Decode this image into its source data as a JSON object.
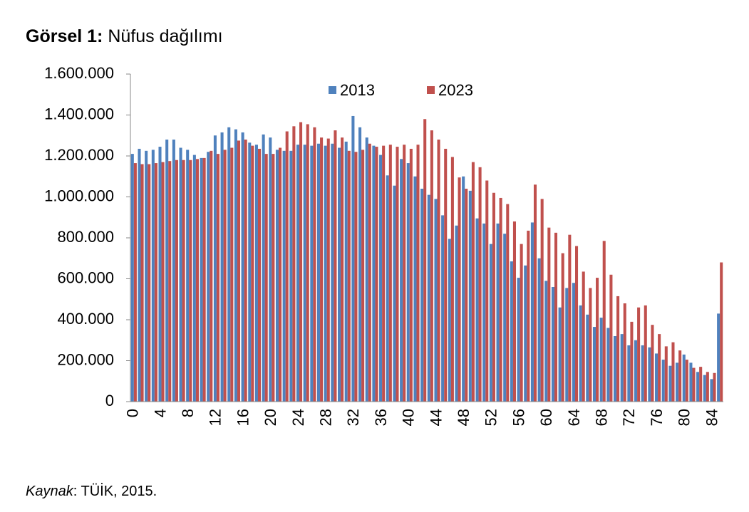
{
  "chart_data": {
    "type": "bar",
    "title_prefix": "Görsel 1:",
    "title": "Nüfus dağılımı",
    "source_label": "Kaynak",
    "source_text": ": TÜİK, 2015.",
    "categories": [
      "0",
      null,
      null,
      null,
      "4",
      null,
      null,
      null,
      "8",
      null,
      null,
      null,
      "12",
      null,
      null,
      null,
      "16",
      null,
      null,
      null,
      "20",
      null,
      null,
      null,
      "24",
      null,
      null,
      null,
      "28",
      null,
      null,
      null,
      "32",
      null,
      null,
      null,
      "36",
      null,
      null,
      null,
      "40",
      null,
      null,
      null,
      "44",
      null,
      null,
      null,
      "48",
      null,
      null,
      null,
      "52",
      null,
      null,
      null,
      "56",
      null,
      null,
      null,
      "60",
      null,
      null,
      null,
      "64",
      null,
      null,
      null,
      "68",
      null,
      null,
      null,
      "72",
      null,
      null,
      null,
      "76",
      null,
      null,
      null,
      "80",
      null,
      null,
      null,
      "84",
      null
    ],
    "series": [
      {
        "name": "2013",
        "color": "#4f81bd",
        "values": [
          1210000,
          1235000,
          1225000,
          1230000,
          1245000,
          1280000,
          1280000,
          1240000,
          1230000,
          1205000,
          1190000,
          1220000,
          1300000,
          1315000,
          1340000,
          1330000,
          1315000,
          1265000,
          1255000,
          1305000,
          1290000,
          1230000,
          1225000,
          1225000,
          1255000,
          1255000,
          1250000,
          1260000,
          1250000,
          1260000,
          1240000,
          1270000,
          1395000,
          1340000,
          1290000,
          1250000,
          1205000,
          1105000,
          1055000,
          1185000,
          1165000,
          1100000,
          1040000,
          1010000,
          990000,
          910000,
          795000,
          860000,
          1100000,
          1030000,
          895000,
          870000,
          770000,
          870000,
          820000,
          685000,
          605000,
          665000,
          875000,
          700000,
          590000,
          560000,
          460000,
          555000,
          580000,
          470000,
          425000,
          365000,
          410000,
          360000,
          320000,
          330000,
          275000,
          300000,
          275000,
          265000,
          235000,
          205000,
          175000,
          190000,
          230000,
          190000,
          145000,
          130000,
          110000,
          430000
        ]
      },
      {
        "name": "2023",
        "color": "#c0504d",
        "values": [
          1165000,
          1160000,
          1160000,
          1165000,
          1170000,
          1175000,
          1180000,
          1180000,
          1180000,
          1185000,
          1190000,
          1225000,
          1210000,
          1230000,
          1240000,
          1275000,
          1280000,
          1250000,
          1235000,
          1210000,
          1210000,
          1240000,
          1320000,
          1345000,
          1365000,
          1355000,
          1340000,
          1290000,
          1285000,
          1325000,
          1290000,
          1225000,
          1220000,
          1230000,
          1260000,
          1245000,
          1250000,
          1255000,
          1245000,
          1255000,
          1235000,
          1255000,
          1380000,
          1325000,
          1280000,
          1235000,
          1195000,
          1095000,
          1040000,
          1170000,
          1145000,
          1080000,
          1020000,
          995000,
          965000,
          880000,
          770000,
          835000,
          1060000,
          990000,
          850000,
          825000,
          725000,
          815000,
          760000,
          635000,
          555000,
          605000,
          785000,
          620000,
          515000,
          480000,
          390000,
          460000,
          470000,
          375000,
          330000,
          270000,
          290000,
          250000,
          205000,
          165000,
          170000,
          145000,
          140000,
          680000
        ]
      }
    ],
    "ylim": [
      0,
      1600000
    ],
    "yticks": [
      0,
      {
        "value": 200000,
        "label": "200.000"
      },
      {
        "value": 400000,
        "label": "400.000"
      },
      {
        "value": 600000,
        "label": "600.000"
      },
      {
        "value": 800000,
        "label": "800.000"
      },
      {
        "value": 1000000,
        "label": "1.000.000"
      },
      {
        "value": 1200000,
        "label": "1.200.000"
      },
      {
        "value": 1400000,
        "label": "1.400.000"
      },
      {
        "value": 1600000,
        "label": "1.600.000"
      }
    ],
    "grid": false,
    "legend": "top"
  }
}
